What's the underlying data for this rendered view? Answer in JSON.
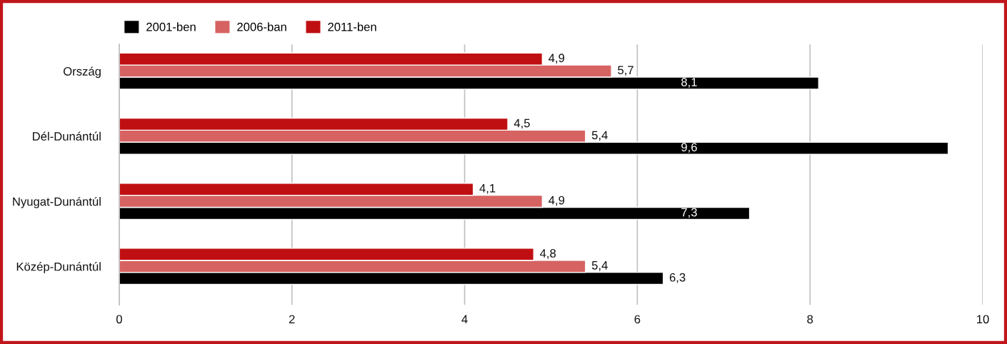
{
  "chart_data": {
    "type": "bar",
    "orientation": "horizontal",
    "categories": [
      "Ország",
      "Dél-Dunántúl",
      "Nyugat-Dunántúl",
      "Közép-Dunántúl"
    ],
    "series": [
      {
        "name": "2001-ben",
        "color": "#000000",
        "values": [
          8.1,
          9.6,
          7.3,
          6.3
        ],
        "value_labels": [
          "8,1",
          "9,6",
          "7,3",
          "6,3"
        ]
      },
      {
        "name": "2006-ban",
        "color": "#d66262",
        "values": [
          5.7,
          5.4,
          4.9,
          5.4
        ],
        "value_labels": [
          "5,7",
          "5,4",
          "4,9",
          "5,4"
        ]
      },
      {
        "name": "2011-ben",
        "color": "#c00f12",
        "values": [
          4.9,
          4.5,
          4.1,
          4.8
        ],
        "value_labels": [
          "4,9",
          "4,5",
          "4,1",
          "4,8"
        ]
      }
    ],
    "xlim": [
      0,
      10
    ],
    "xticks": [
      0,
      2,
      4,
      6,
      8,
      10
    ],
    "grid": "x",
    "legend": "top left"
  }
}
